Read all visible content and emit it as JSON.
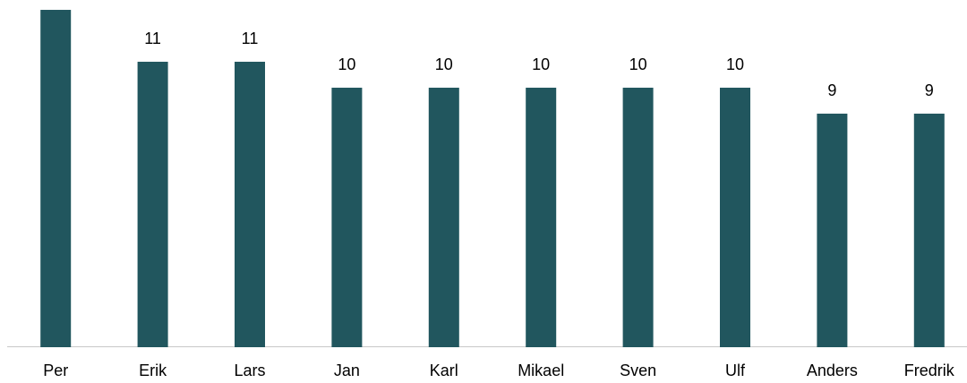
{
  "chart_data": {
    "type": "bar",
    "categories": [
      "Per",
      "Erik",
      "Lars",
      "Jan",
      "Karl",
      "Mikael",
      "Sven",
      "Ulf",
      "Anders",
      "Fredrik"
    ],
    "values": [
      13,
      11,
      11,
      10,
      10,
      10,
      10,
      10,
      9,
      9
    ],
    "color": "#21565e",
    "ylim": [
      0,
      13.38
    ]
  }
}
